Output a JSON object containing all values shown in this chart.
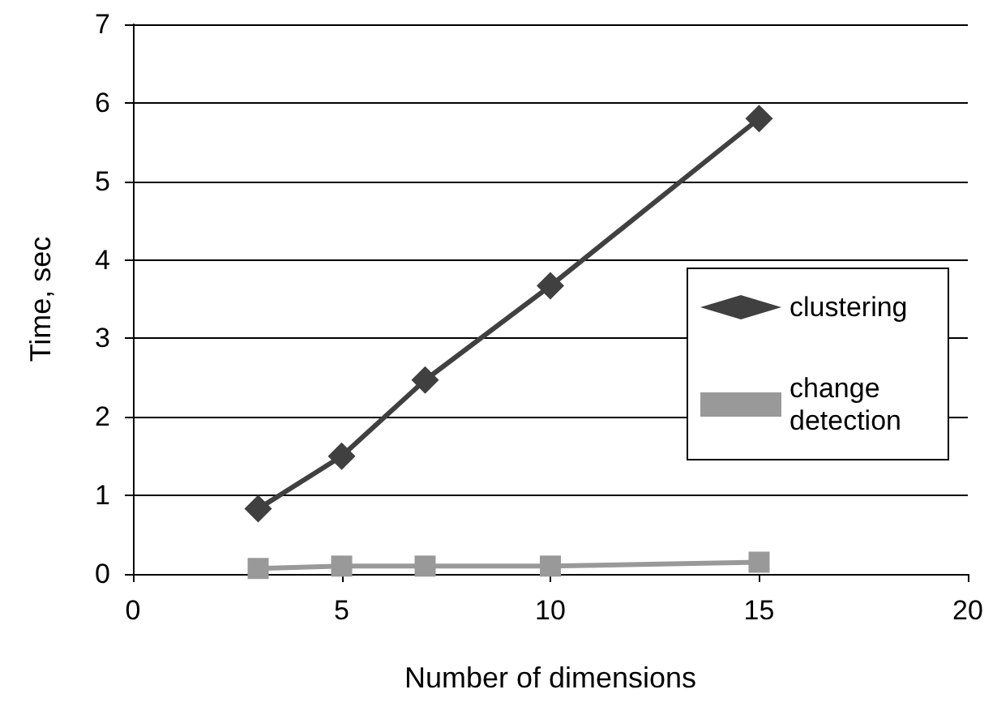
{
  "chart_data": {
    "type": "line",
    "xlabel": "Number of dimensions",
    "ylabel": "Time, sec",
    "x": [
      3,
      5,
      7,
      10,
      15
    ],
    "series": [
      {
        "name": "clustering",
        "color": "#404040",
        "marker": "diamond",
        "values": [
          0.83,
          1.5,
          2.47,
          3.67,
          5.8
        ]
      },
      {
        "name": "change detection",
        "color": "#999999",
        "marker": "square",
        "values": [
          0.07,
          0.1,
          0.1,
          0.1,
          0.15
        ]
      }
    ],
    "xlim": [
      0,
      20
    ],
    "xticks": [
      0,
      5,
      10,
      15,
      20
    ],
    "ylim": [
      0,
      7
    ],
    "yticks": [
      0,
      1,
      2,
      3,
      4,
      5,
      6,
      7
    ],
    "grid": "y",
    "legend": "right",
    "line_style": "solid"
  }
}
